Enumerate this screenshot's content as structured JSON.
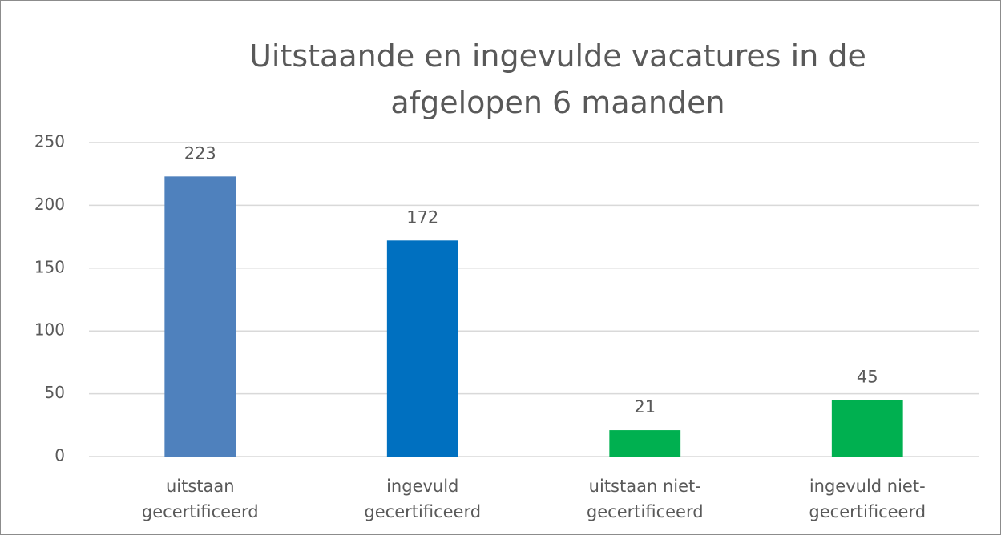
{
  "chart_data": {
    "type": "bar",
    "title": "Uitstaande en ingevulde vacatures in de afgelopen 6 maanden",
    "categories": [
      "uitstaan gecertificeerd",
      "ingevuld gecertificeerd",
      "uitstaan niet-gecertificeerd",
      "ingevuld niet-gecertificeerd"
    ],
    "values": [
      223,
      172,
      21,
      45
    ],
    "colors": [
      "#4f81bd",
      "#0070c0",
      "#00b050",
      "#00b050"
    ],
    "ylim": [
      0,
      250
    ],
    "yticks": [
      0,
      50,
      100,
      150,
      200,
      250
    ],
    "grid": true
  }
}
